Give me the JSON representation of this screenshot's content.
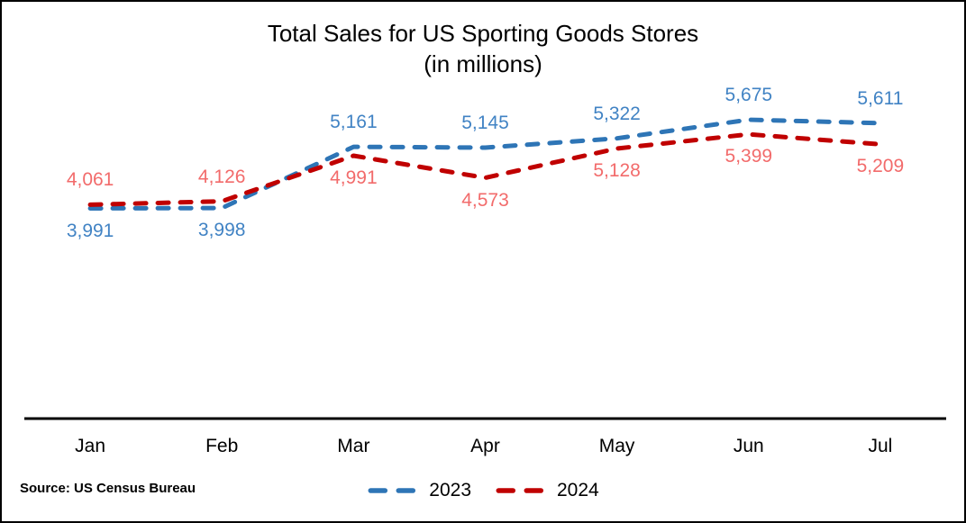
{
  "chart_data": {
    "type": "line",
    "title": "Total Sales for US Sporting Goods Stores",
    "subtitle": "(in millions)",
    "categories": [
      "Jan",
      "Feb",
      "Mar",
      "Apr",
      "May",
      "Jun",
      "Jul"
    ],
    "series": [
      {
        "name": "2023",
        "color": "#2E75B6",
        "label_color": "#4183C4",
        "values": [
          3991,
          3998,
          5161,
          5145,
          5322,
          5675,
          5611
        ]
      },
      {
        "name": "2024",
        "color": "#C00000",
        "label_color": "#F26B6B",
        "values": [
          4061,
          4126,
          4991,
          4573,
          5128,
          5399,
          5209
        ]
      }
    ],
    "ylim": [
      0,
      7900
    ],
    "line_style": "dashed",
    "grid": false,
    "y_axis_shown": false,
    "legend_position": "bottom-center",
    "value_format": "thousands-comma",
    "axis_color": "#000000"
  },
  "footer": {
    "source": "Source: US Census Bureau"
  }
}
